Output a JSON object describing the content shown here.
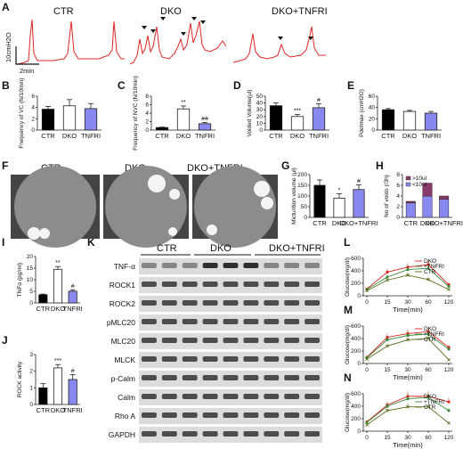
{
  "panel_labels": [
    "A",
    "B",
    "C",
    "D",
    "E",
    "F",
    "G",
    "H",
    "I",
    "J",
    "K",
    "L",
    "M",
    "N"
  ],
  "colors": {
    "ctr": "#000000",
    "dko": "#ffffff",
    "tnfri": "#8888ee",
    "trace": "#e02424",
    "purple": "#8a3a6a",
    "blot_bg": "#dcdcdc",
    "band": "#1c1c1c"
  },
  "panel_A": {
    "groups": [
      "CTR",
      "DKO",
      "DKO+TNFRI"
    ],
    "scalebar_y": "10cmH2O",
    "scalebar_x": "2min"
  },
  "panel_F": {
    "groups": [
      "CTR",
      "DKO",
      "DKO+TNFRI"
    ]
  },
  "panel_K": {
    "groups": [
      "CTR",
      "DKO",
      "DKO+TNFRI"
    ],
    "bands": [
      "TNF-α",
      "ROCK1",
      "ROCK2",
      "pMLC20",
      "MLC20",
      "MLCK",
      "p-Calm",
      "Calm",
      "Rho A",
      "GAPDH"
    ]
  },
  "chart_data": [
    {
      "panel": "B",
      "type": "bar",
      "categories": [
        "CTR",
        "DKO",
        "TNFRI"
      ],
      "values": [
        3.7,
        4.3,
        3.8
      ],
      "errors": [
        0.5,
        1.1,
        0.9
      ],
      "ylabel": "Frequency of VC (N/10min)",
      "ylim": [
        0,
        6
      ],
      "yticks": [
        0,
        2,
        4,
        6
      ],
      "sig": [
        "",
        "",
        ""
      ]
    },
    {
      "panel": "C",
      "type": "bar",
      "categories": [
        "CTR",
        "DKO",
        "TNFRI"
      ],
      "values": [
        0.6,
        5.0,
        1.5
      ],
      "errors": [
        0.1,
        0.7,
        0.3
      ],
      "ylabel": "Frequency of NVC (N/10min)",
      "ylim": [
        0,
        8
      ],
      "yticks": [
        0,
        2,
        4,
        6,
        8
      ],
      "sig": [
        "",
        "**",
        "##"
      ]
    },
    {
      "panel": "D",
      "type": "bar",
      "categories": [
        "CTR",
        "DKO",
        "TNFRI"
      ],
      "values": [
        36,
        20,
        33
      ],
      "errors": [
        4,
        3,
        6
      ],
      "ylabel": "Voided Volume(µl)",
      "ylim": [
        0,
        50
      ],
      "yticks": [
        0,
        10,
        20,
        30,
        40,
        50
      ],
      "sig": [
        "",
        "***",
        "#"
      ]
    },
    {
      "panel": "E",
      "type": "bar",
      "categories": [
        "CTR",
        "DKO",
        "TNFRI"
      ],
      "values": [
        36,
        33,
        30
      ],
      "errors": [
        2,
        2,
        3
      ],
      "ylabel": "Pdetmax (cmH2O)",
      "ylim": [
        0,
        60
      ],
      "yticks": [
        0,
        20,
        40,
        60
      ],
      "sig": [
        "",
        "",
        ""
      ]
    },
    {
      "panel": "G",
      "type": "bar",
      "categories": [
        "CTR",
        "DKO",
        "DKO+TNFRI"
      ],
      "values": [
        150,
        90,
        130
      ],
      "errors": [
        25,
        20,
        22
      ],
      "ylabel": "Micturition volume (µl)",
      "ylim": [
        0,
        200
      ],
      "yticks": [
        0,
        50,
        100,
        150,
        200
      ],
      "sig": [
        "",
        "*",
        "#"
      ]
    },
    {
      "panel": "H",
      "type": "bar",
      "categories": [
        "CTR",
        "DKO",
        "DKO+TNFRI"
      ],
      "series": [
        {
          "name": "<10ul",
          "values": [
            2.7,
            4.0,
            3.4
          ]
        },
        {
          "name": ">10ul",
          "values": [
            0.3,
            2.4,
            0.6
          ]
        }
      ],
      "ylabel": "No of voids (/3h)",
      "ylim": [
        0,
        8
      ],
      "yticks": [
        0,
        2,
        4,
        6,
        8
      ]
    },
    {
      "panel": "I",
      "type": "bar",
      "categories": [
        "CTR",
        "DKO",
        "TNFRI"
      ],
      "values": [
        3.5,
        14.5,
        5.0
      ],
      "errors": [
        0.3,
        1.2,
        0.6
      ],
      "ylabel": "TNFα (pg/ml)",
      "ylim": [
        0,
        20
      ],
      "yticks": [
        0,
        5,
        10,
        15,
        20
      ],
      "sig": [
        "",
        "**",
        "#"
      ]
    },
    {
      "panel": "J",
      "type": "bar",
      "categories": [
        "CTR",
        "DKO",
        "TNFRI"
      ],
      "values": [
        1.0,
        2.2,
        1.5
      ],
      "errors": [
        0.25,
        0.2,
        0.3
      ],
      "ylabel": "ROCK activity",
      "ylim": [
        0,
        3
      ],
      "yticks": [
        0,
        1,
        2,
        3
      ],
      "sig": [
        "",
        "***",
        "#"
      ]
    },
    {
      "panel": "L",
      "type": "line",
      "x": [
        0,
        15,
        30,
        60,
        120
      ],
      "xlabel": "Time(min)",
      "ylabel": "Glucose(mg/dl)",
      "ylim": [
        0,
        600
      ],
      "yticks": [
        0,
        200,
        400,
        600
      ],
      "series": [
        {
          "name": "DKO",
          "values": [
            110,
            380,
            460,
            500,
            180
          ]
        },
        {
          "name": "+TNFRI",
          "values": [
            100,
            300,
            420,
            440,
            150
          ]
        },
        {
          "name": "CTR",
          "values": [
            80,
            250,
            330,
            260,
            100
          ]
        }
      ]
    },
    {
      "panel": "M",
      "type": "line",
      "x": [
        0,
        15,
        30,
        60,
        120
      ],
      "xlabel": "Time(min)",
      "ylabel": "Glucose(mg/dl)",
      "ylim": [
        0,
        600
      ],
      "yticks": [
        0,
        200,
        400,
        600
      ],
      "series": [
        {
          "name": "DKO",
          "values": [
            100,
            420,
            480,
            510,
            260
          ]
        },
        {
          "name": "+TNFRI",
          "values": [
            90,
            380,
            450,
            470,
            230
          ]
        },
        {
          "name": "CTR",
          "values": [
            70,
            280,
            380,
            400,
            60
          ]
        }
      ]
    },
    {
      "panel": "N",
      "type": "line",
      "x": [
        0,
        15,
        30,
        60,
        120
      ],
      "xlabel": "Time(min)",
      "ylabel": "Glucose(mg/dl)",
      "ylim": [
        0,
        600
      ],
      "yticks": [
        0,
        200,
        400,
        600
      ],
      "series": [
        {
          "name": "DKO",
          "values": [
            150,
            420,
            560,
            560,
            470
          ]
        },
        {
          "name": "+TNFRI",
          "values": [
            140,
            400,
            520,
            540,
            330
          ]
        },
        {
          "name": "CTR",
          "values": [
            100,
            330,
            390,
            390,
            130
          ]
        }
      ]
    }
  ]
}
